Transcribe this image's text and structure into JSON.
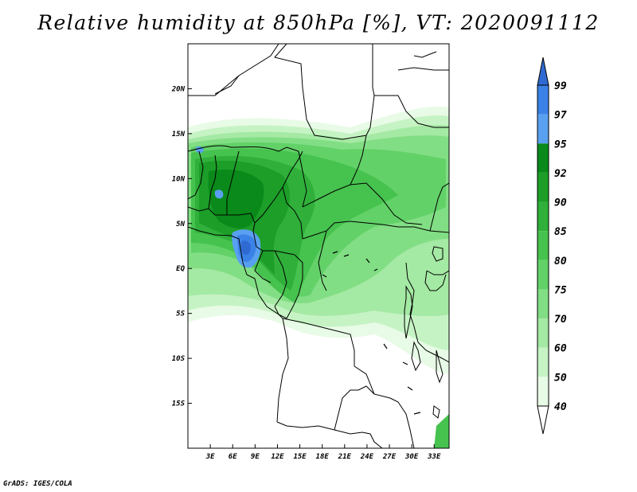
{
  "title": "Relative humidity at 850hPa [%], VT: 2020091112",
  "credit": "GrADS: IGES/COLA",
  "lat_ticks": [
    {
      "label": "20N",
      "lat": 20
    },
    {
      "label": "15N",
      "lat": 15
    },
    {
      "label": "10N",
      "lat": 10
    },
    {
      "label": "5N",
      "lat": 5
    },
    {
      "label": "EQ",
      "lat": 0
    },
    {
      "label": "5S",
      "lat": -5
    },
    {
      "label": "10S",
      "lat": -10
    },
    {
      "label": "15S",
      "lat": -15
    }
  ],
  "lon_ticks": [
    {
      "label": "3E",
      "lon": 3
    },
    {
      "label": "6E",
      "lon": 6
    },
    {
      "label": "9E",
      "lon": 9
    },
    {
      "label": "12E",
      "lon": 12
    },
    {
      "label": "15E",
      "lon": 15
    },
    {
      "label": "18E",
      "lon": 18
    },
    {
      "label": "21E",
      "lon": 21
    },
    {
      "label": "24E",
      "lon": 24
    },
    {
      "label": "27E",
      "lon": 27
    },
    {
      "label": "30E",
      "lon": 30
    },
    {
      "label": "33E",
      "lon": 33
    }
  ],
  "map_extent": {
    "lon_min": 0,
    "lon_max": 35,
    "lat_min": -20,
    "lat_max": 25
  },
  "colorbar": {
    "levels": [
      "99",
      "97",
      "95",
      "92",
      "90",
      "85",
      "80",
      "75",
      "70",
      "60",
      "50",
      "40"
    ],
    "colors": [
      "#2f6ad3",
      "#3b82e6",
      "#5aa0f0",
      "#0a8a1a",
      "#1c9e28",
      "#30b03a",
      "#46c24e",
      "#62d168",
      "#82de84",
      "#a4e9a4",
      "#c6f3c4",
      "#e8fbe6",
      "#ffffff"
    ]
  }
}
